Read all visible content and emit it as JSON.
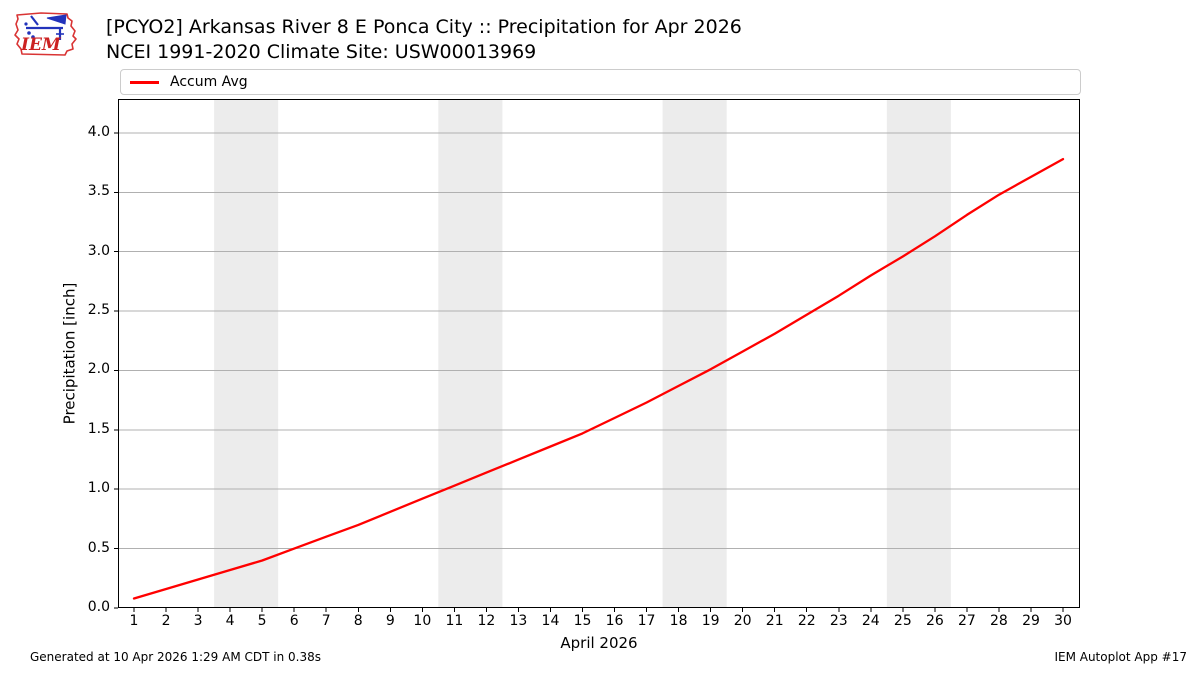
{
  "header": {
    "title_line1": "[PCYO2] Arkansas River 8 E Ponca City :: Precipitation for Apr 2026",
    "title_line2": "NCEI 1991-2020 Climate Site: USW00013969",
    "logo_text": "IEM"
  },
  "legend": {
    "items": [
      {
        "label": "Accum Avg",
        "color": "#ff0000"
      }
    ]
  },
  "footer": {
    "left": "Generated at 10 Apr 2026 1:29 AM CDT in 0.38s",
    "right": "IEM Autoplot App #17"
  },
  "colors": {
    "line": "#ff0000",
    "grid": "#b0b0b0",
    "band": "#ececec",
    "spine": "#000000",
    "legend_border": "#cccccc",
    "logo_red": "#d93434",
    "logo_blue": "#2233bb"
  },
  "chart_data": {
    "type": "line",
    "title": "[PCYO2] Arkansas River 8 E Ponca City :: Precipitation for Apr 2026",
    "subtitle": "NCEI 1991-2020 Climate Site: USW00013969",
    "xlabel": "April 2026",
    "ylabel": "Precipitation [inch]",
    "xlim": [
      0.5,
      30.53
    ],
    "ylim": [
      0,
      4.286
    ],
    "grid": "horizontal",
    "legend_position": "top",
    "xticks": [
      1,
      2,
      3,
      4,
      5,
      6,
      7,
      8,
      9,
      10,
      11,
      12,
      13,
      14,
      15,
      16,
      17,
      18,
      19,
      20,
      21,
      22,
      23,
      24,
      25,
      26,
      27,
      28,
      29,
      30
    ],
    "ytick_labels": [
      "0.0",
      "0.5",
      "1.0",
      "1.5",
      "2.0",
      "2.5",
      "3.0",
      "3.5",
      "4.0"
    ],
    "ytick_values": [
      0,
      0.5,
      1.0,
      1.5,
      2.0,
      2.5,
      3.0,
      3.5,
      4.0
    ],
    "weekend_bands": [
      [
        3.5,
        5.5
      ],
      [
        10.5,
        12.5
      ],
      [
        17.5,
        19.5
      ],
      [
        24.5,
        26.5
      ]
    ],
    "series": [
      {
        "name": "Accum Avg",
        "color": "#ff0000",
        "x": [
          1,
          2,
          3,
          4,
          5,
          6,
          7,
          8,
          9,
          10,
          11,
          12,
          13,
          14,
          15,
          16,
          17,
          18,
          19,
          20,
          21,
          22,
          23,
          24,
          25,
          26,
          27,
          28,
          29,
          30
        ],
        "values": [
          0.08,
          0.16,
          0.24,
          0.32,
          0.4,
          0.5,
          0.6,
          0.7,
          0.81,
          0.92,
          1.03,
          1.14,
          1.25,
          1.36,
          1.47,
          1.6,
          1.73,
          1.87,
          2.01,
          2.16,
          2.31,
          2.47,
          2.63,
          2.8,
          2.96,
          3.13,
          3.31,
          3.48,
          3.63,
          3.78
        ]
      }
    ]
  }
}
